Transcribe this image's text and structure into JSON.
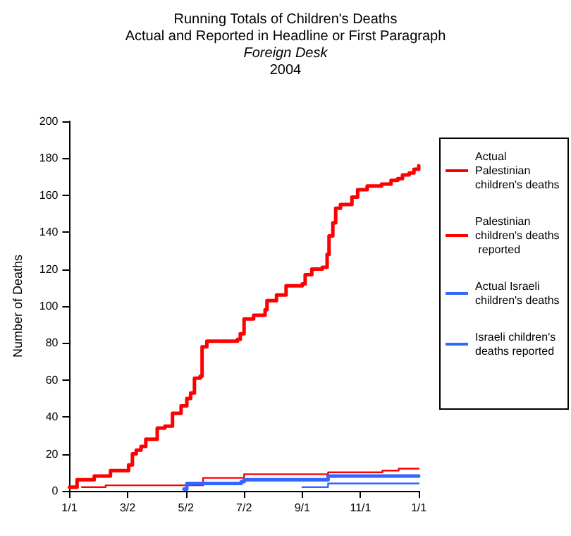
{
  "chart_data": {
    "type": "step",
    "title": "Running Totals of Children's Deaths",
    "subtitle": "Actual and Reported in Headline or First Paragraph",
    "annotations": [
      "Foreign Desk",
      "2004"
    ],
    "ylabel": "Number of Deaths",
    "xlim": [
      "2004-01-01",
      "2005-01-01"
    ],
    "xticks": [
      {
        "value": "2004-01-01",
        "label": "1/1"
      },
      {
        "value": "2004-03-02",
        "label": "3/2"
      },
      {
        "value": "2004-05-02",
        "label": "5/2"
      },
      {
        "value": "2004-07-02",
        "label": "7/2"
      },
      {
        "value": "2004-09-01",
        "label": "9/1"
      },
      {
        "value": "2004-11-01",
        "label": "11/1"
      },
      {
        "value": "2005-01-01",
        "label": "1/1"
      }
    ],
    "ylim": [
      0,
      200
    ],
    "yticks": [
      0,
      20,
      40,
      60,
      80,
      100,
      120,
      140,
      160,
      180,
      200
    ],
    "grid": false,
    "legend": "right",
    "marker": "none",
    "line_style": "solid",
    "series": [
      {
        "name": "Actual Palestinian children's deaths",
        "color": "#ff0000",
        "x": [
          "2004-01-01",
          "2004-01-09",
          "2004-01-27",
          "2004-02-13",
          "2004-03-03",
          "2004-03-07",
          "2004-03-11",
          "2004-03-16",
          "2004-03-21",
          "2004-04-02",
          "2004-04-10",
          "2004-04-18",
          "2004-04-27",
          "2004-05-03",
          "2004-05-07",
          "2004-05-11",
          "2004-05-17",
          "2004-05-19",
          "2004-05-24",
          "2004-06-25",
          "2004-06-28",
          "2004-07-02",
          "2004-07-12",
          "2004-07-24",
          "2004-07-26",
          "2004-08-05",
          "2004-08-15",
          "2004-09-01",
          "2004-09-04",
          "2004-09-11",
          "2004-09-22",
          "2004-09-27",
          "2004-09-29",
          "2004-10-03",
          "2004-10-06",
          "2004-10-11",
          "2004-10-23",
          "2004-10-29",
          "2004-11-08",
          "2004-11-23",
          "2004-12-03",
          "2004-12-10",
          "2004-12-15",
          "2004-12-22",
          "2004-12-27",
          "2005-01-01"
        ],
        "values": [
          2,
          6,
          8,
          11,
          14,
          20,
          22,
          24,
          28,
          34,
          35,
          42,
          46,
          50,
          53,
          61,
          62,
          78,
          81,
          82,
          85,
          93,
          95,
          98,
          103,
          106,
          111,
          112,
          117,
          120,
          121,
          128,
          138,
          145,
          153,
          155,
          159,
          163,
          165,
          166,
          168,
          169,
          171,
          172,
          174,
          176
        ]
      },
      {
        "name": "Palestinian children's deaths reported",
        "color": "#ff0000",
        "x": [
          "2004-01-14",
          "2004-02-08",
          "2004-05-20",
          "2004-07-02",
          "2004-09-28",
          "2004-11-24",
          "2004-12-11",
          "2005-01-01"
        ],
        "values": [
          2,
          3,
          7,
          9,
          10,
          11,
          12,
          12
        ]
      },
      {
        "name": "Actual Israeli children's deaths",
        "color": "#3366ff",
        "x": [
          "2004-04-30",
          "2004-05-03",
          "2004-06-29",
          "2004-07-02",
          "2004-09-28",
          "2005-01-01"
        ],
        "values": [
          1,
          4,
          5,
          6,
          8,
          8
        ]
      },
      {
        "name": "Israeli children's deaths reported",
        "color": "#3366ff",
        "x": [
          "2004-09-01",
          "2004-09-28",
          "2005-01-01"
        ],
        "values": [
          2,
          4,
          4
        ]
      }
    ]
  }
}
